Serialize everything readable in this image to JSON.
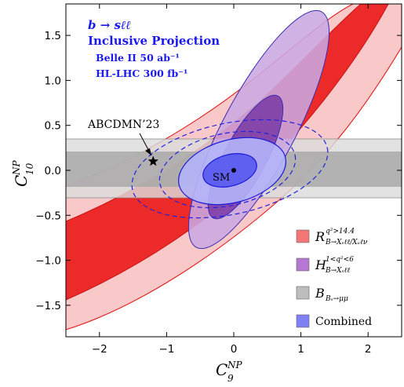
{
  "chart_data": {
    "type": "contour",
    "xlabel_main": "C",
    "xlabel_sub": "9",
    "xlabel_sup": "NP",
    "ylabel_main": "C",
    "ylabel_sub": "10",
    "ylabel_sup": "NP",
    "xlim": [
      -2.5,
      2.5
    ],
    "ylim": [
      -1.85,
      1.85
    ],
    "x_ticks": [
      -2,
      -1,
      0,
      1,
      2
    ],
    "x_tick_labels": [
      "−2",
      "−1",
      "0",
      "1",
      "2"
    ],
    "y_ticks": [
      -1.5,
      -1.0,
      -0.5,
      0.0,
      0.5,
      1.0,
      1.5
    ],
    "y_tick_labels": [
      "−1.5",
      "−1.0",
      "−0.5",
      "0.0",
      "0.5",
      "1.0",
      "1.5"
    ],
    "title_lines": [
      "b → sℓℓ",
      "Inclusive Projection",
      "Belle II 50 ab⁻¹",
      "HL-LHC 300 fb⁻¹"
    ],
    "points": [
      {
        "label": "SM",
        "x": 0.0,
        "y": 0.0,
        "marker": "dot"
      },
      {
        "label": "ABCDMN’23",
        "x": -1.2,
        "y": 0.1,
        "marker": "star"
      }
    ],
    "bands": {
      "R_inclusive": {
        "outer_color": "#f9c9c9",
        "inner_color": "#ed2a2a",
        "edge_color": "#e41d1d",
        "inner_y": [
          -1.83,
          -0.54,
          0.02,
          0.42,
          0.79,
          1.12,
          1.4,
          1.66,
          1.85
        ],
        "outer_y": [
          -1.68,
          -0.33,
          0.23,
          0.63,
          0.98,
          1.3,
          1.59,
          1.85
        ],
        "inner_upper_x": [
          -2.5,
          -1.5,
          -1.0,
          -0.5,
          0.0,
          0.5,
          1.0,
          1.5,
          2.0
        ],
        "outer_upper_x": [
          -2.5,
          -1.5,
          -1.0,
          -0.5,
          0.0,
          0.5,
          1.0,
          1.55
        ]
      },
      "B_s_mumu": {
        "color": "#dcdcdc",
        "inner_color": "#a9a9a9",
        "outer_y_range": [
          -0.33,
          0.33
        ],
        "inner_y_range": [
          -0.2,
          0.2
        ]
      }
    },
    "ellipses": {
      "H_inclusive": {
        "center": [
          0.3,
          0.1
        ],
        "color": "#c9a8e0",
        "inner_color": "#8040a8"
      },
      "combined": {
        "center": [
          0.0,
          0.0
        ],
        "color": "#b4b4f8",
        "inner_color": "#6060f0"
      }
    },
    "legend": {
      "placement": "lower-right",
      "entries": [
        {
          "name": "R",
          "sup": "q²>14.4",
          "sub": "B→Xₛℓℓ/Xᵤℓν",
          "color": "#f47575"
        },
        {
          "name": "H",
          "sup": "1<q²<6",
          "sub": "B→Xₛℓℓ",
          "color": "#b577d1"
        },
        {
          "name": "B",
          "sup": "",
          "sub": "Bₛ→μμ",
          "color": "#bdbdbd"
        },
        {
          "name": "Combined",
          "sup": "",
          "sub": "",
          "color": "#8080f5"
        }
      ]
    },
    "grid": false
  }
}
